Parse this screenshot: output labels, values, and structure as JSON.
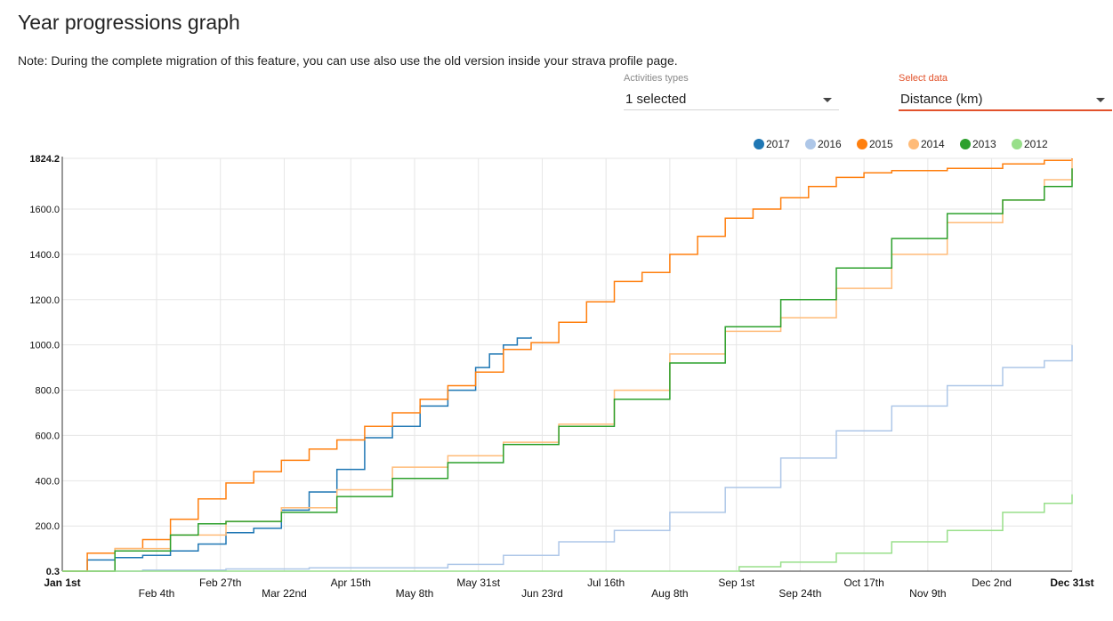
{
  "page": {
    "title": "Year progressions graph",
    "note": "Note: During the complete migration of this feature, you can use also use the old version inside your strava profile page."
  },
  "controls": {
    "activities": {
      "label": "Activities types",
      "value": "1 selected"
    },
    "data": {
      "label": "Select data",
      "value": "Distance (km)"
    }
  },
  "colors": {
    "2017": "#1f77b4",
    "2016": "#aec7e8",
    "2015": "#ff7f0e",
    "2014": "#ffbb78",
    "2013": "#2ca02c",
    "2012": "#98df8a",
    "accent": "#e2522b"
  },
  "chart_data": {
    "type": "line",
    "ylim": [
      0.3,
      1824.2
    ],
    "y_ticks": [
      {
        "label": "0.3",
        "value": 0.3,
        "bold": true
      },
      {
        "label": "200.0",
        "value": 200
      },
      {
        "label": "400.0",
        "value": 400
      },
      {
        "label": "600.0",
        "value": 600
      },
      {
        "label": "800.0",
        "value": 800
      },
      {
        "label": "1000.0",
        "value": 1000
      },
      {
        "label": "1200.0",
        "value": 1200
      },
      {
        "label": "1400.0",
        "value": 1400
      },
      {
        "label": "1600.0",
        "value": 1600
      },
      {
        "label": "1824.2",
        "value": 1824.2,
        "bold": true
      }
    ],
    "x_ticks": [
      {
        "label": "Jan 1st",
        "day": 1,
        "row": 0,
        "bold": true
      },
      {
        "label": "Feb 4th",
        "day": 35,
        "row": 1
      },
      {
        "label": "Feb 27th",
        "day": 58,
        "row": 0
      },
      {
        "label": "Mar 22nd",
        "day": 81,
        "row": 1
      },
      {
        "label": "Apr 15th",
        "day": 105,
        "row": 0
      },
      {
        "label": "May 8th",
        "day": 128,
        "row": 1
      },
      {
        "label": "May 31st",
        "day": 151,
        "row": 0
      },
      {
        "label": "Jun 23rd",
        "day": 174,
        "row": 1
      },
      {
        "label": "Jul 16th",
        "day": 197,
        "row": 0
      },
      {
        "label": "Aug 8th",
        "day": 220,
        "row": 1
      },
      {
        "label": "Sep 1st",
        "day": 244,
        "row": 0
      },
      {
        "label": "Sep 24th",
        "day": 267,
        "row": 1
      },
      {
        "label": "Oct 17th",
        "day": 290,
        "row": 0
      },
      {
        "label": "Nov 9th",
        "day": 313,
        "row": 1
      },
      {
        "label": "Dec 2nd",
        "day": 336,
        "row": 0
      },
      {
        "label": "Dec 31st",
        "day": 365,
        "row": 0,
        "bold": true
      }
    ],
    "x_domain": [
      1,
      365
    ],
    "grid": true,
    "legend_position": "top-right",
    "series": [
      {
        "name": "2017",
        "points": [
          [
            1,
            0.3
          ],
          [
            10,
            50
          ],
          [
            20,
            60
          ],
          [
            30,
            70
          ],
          [
            40,
            90
          ],
          [
            50,
            120
          ],
          [
            60,
            170
          ],
          [
            70,
            190
          ],
          [
            80,
            270
          ],
          [
            90,
            350
          ],
          [
            100,
            450
          ],
          [
            110,
            590
          ],
          [
            120,
            640
          ],
          [
            130,
            730
          ],
          [
            140,
            800
          ],
          [
            150,
            900
          ],
          [
            155,
            960
          ],
          [
            160,
            1000
          ],
          [
            165,
            1030
          ],
          [
            170,
            1035
          ]
        ]
      },
      {
        "name": "2016",
        "points": [
          [
            1,
            0.3
          ],
          [
            30,
            5
          ],
          [
            60,
            10
          ],
          [
            90,
            15
          ],
          [
            120,
            15
          ],
          [
            140,
            30
          ],
          [
            160,
            70
          ],
          [
            180,
            130
          ],
          [
            200,
            180
          ],
          [
            220,
            260
          ],
          [
            240,
            370
          ],
          [
            260,
            500
          ],
          [
            280,
            620
          ],
          [
            300,
            730
          ],
          [
            320,
            820
          ],
          [
            340,
            900
          ],
          [
            355,
            930
          ],
          [
            365,
            1000
          ]
        ]
      },
      {
        "name": "2015",
        "points": [
          [
            1,
            0.3
          ],
          [
            10,
            80
          ],
          [
            20,
            100
          ],
          [
            30,
            140
          ],
          [
            40,
            230
          ],
          [
            50,
            320
          ],
          [
            60,
            390
          ],
          [
            70,
            440
          ],
          [
            80,
            490
          ],
          [
            90,
            540
          ],
          [
            100,
            580
          ],
          [
            110,
            640
          ],
          [
            120,
            700
          ],
          [
            130,
            760
          ],
          [
            140,
            820
          ],
          [
            150,
            880
          ],
          [
            160,
            980
          ],
          [
            170,
            1010
          ],
          [
            180,
            1100
          ],
          [
            190,
            1190
          ],
          [
            200,
            1280
          ],
          [
            210,
            1320
          ],
          [
            220,
            1400
          ],
          [
            230,
            1480
          ],
          [
            240,
            1560
          ],
          [
            250,
            1600
          ],
          [
            260,
            1650
          ],
          [
            270,
            1700
          ],
          [
            280,
            1740
          ],
          [
            290,
            1760
          ],
          [
            300,
            1770
          ],
          [
            320,
            1780
          ],
          [
            340,
            1800
          ],
          [
            355,
            1815
          ],
          [
            365,
            1824.2
          ]
        ]
      },
      {
        "name": "2014",
        "points": [
          [
            1,
            0.3
          ],
          [
            20,
            100
          ],
          [
            40,
            160
          ],
          [
            60,
            220
          ],
          [
            80,
            280
          ],
          [
            100,
            360
          ],
          [
            120,
            460
          ],
          [
            140,
            510
          ],
          [
            160,
            570
          ],
          [
            180,
            650
          ],
          [
            200,
            800
          ],
          [
            220,
            960
          ],
          [
            240,
            1060
          ],
          [
            260,
            1120
          ],
          [
            280,
            1250
          ],
          [
            300,
            1400
          ],
          [
            320,
            1540
          ],
          [
            340,
            1640
          ],
          [
            355,
            1730
          ],
          [
            365,
            1820
          ]
        ]
      },
      {
        "name": "2013",
        "points": [
          [
            1,
            0.3
          ],
          [
            20,
            90
          ],
          [
            40,
            160
          ],
          [
            50,
            210
          ],
          [
            60,
            220
          ],
          [
            80,
            260
          ],
          [
            100,
            330
          ],
          [
            120,
            410
          ],
          [
            140,
            480
          ],
          [
            160,
            560
          ],
          [
            180,
            640
          ],
          [
            200,
            760
          ],
          [
            220,
            920
          ],
          [
            240,
            1080
          ],
          [
            260,
            1200
          ],
          [
            280,
            1340
          ],
          [
            300,
            1470
          ],
          [
            320,
            1580
          ],
          [
            340,
            1640
          ],
          [
            355,
            1700
          ],
          [
            365,
            1780
          ]
        ]
      },
      {
        "name": "2012",
        "points": [
          [
            1,
            0.3
          ],
          [
            200,
            0.3
          ],
          [
            230,
            0.3
          ],
          [
            245,
            20
          ],
          [
            260,
            40
          ],
          [
            280,
            80
          ],
          [
            300,
            130
          ],
          [
            320,
            180
          ],
          [
            340,
            260
          ],
          [
            355,
            300
          ],
          [
            365,
            340
          ]
        ]
      }
    ]
  }
}
